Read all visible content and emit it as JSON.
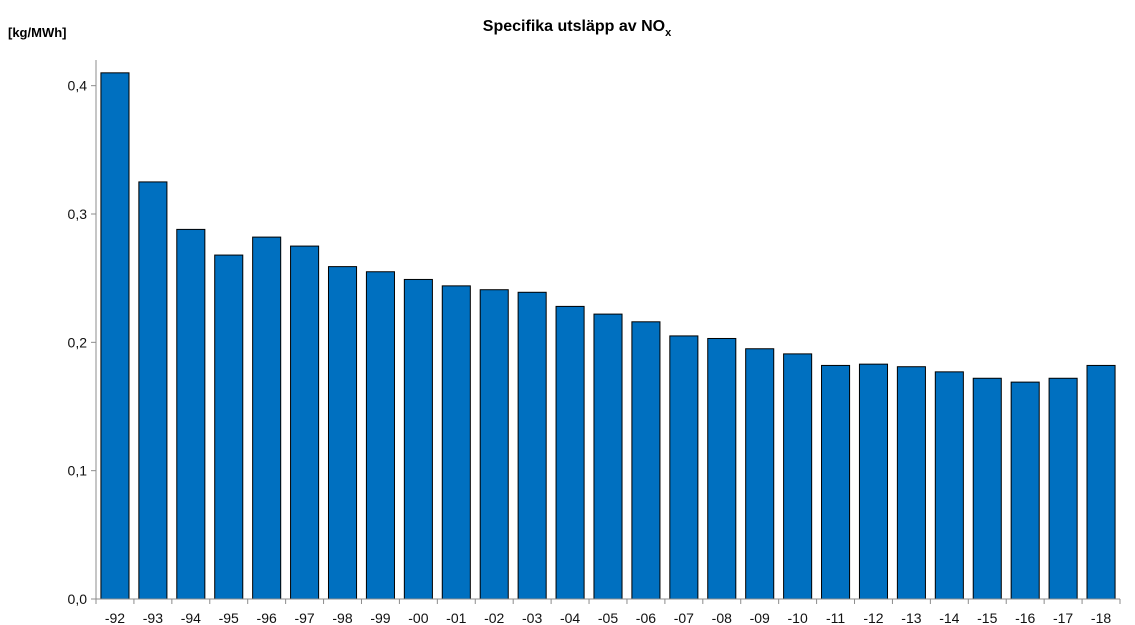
{
  "chart_data": {
    "type": "bar",
    "title": "Specifika utsläpp av NO",
    "title_subscript": "x",
    "ylabel": "[kg/MWh]",
    "xlabel": "",
    "categories": [
      "-92",
      "-93",
      "-94",
      "-95",
      "-96",
      "-97",
      "-98",
      "-99",
      "-00",
      "-01",
      "-02",
      "-03",
      "-04",
      "-05",
      "-06",
      "-07",
      "-08",
      "-09",
      "-10",
      "-11",
      "-12",
      "-13",
      "-14",
      "-15",
      "-16",
      "-17",
      "-18"
    ],
    "values": [
      0.41,
      0.325,
      0.288,
      0.268,
      0.282,
      0.275,
      0.259,
      0.255,
      0.249,
      0.244,
      0.241,
      0.239,
      0.228,
      0.222,
      0.216,
      0.205,
      0.203,
      0.195,
      0.191,
      0.182,
      0.183,
      0.181,
      0.177,
      0.172,
      0.169,
      0.172,
      0.182
    ],
    "ylim": [
      0,
      0.42
    ],
    "yticks": [
      0.0,
      0.1,
      0.2,
      0.3,
      0.4
    ],
    "ytick_labels": [
      "0,0",
      "0,1",
      "0,2",
      "0,3",
      "0,4"
    ],
    "grid": false,
    "legend": "none",
    "bar_color": "#0070c0",
    "bar_edge_color": "#000000",
    "axis_color": "#8c8c8c"
  }
}
